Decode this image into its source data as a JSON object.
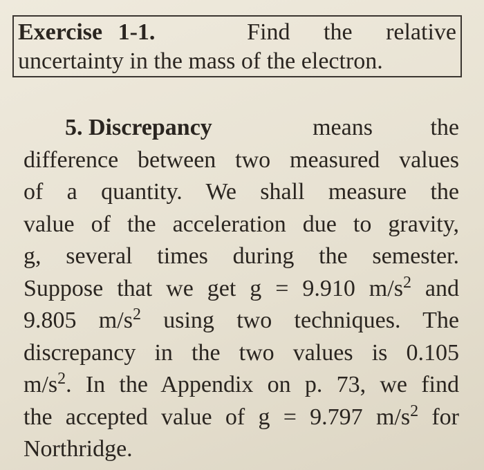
{
  "exercise": {
    "label": "Exercise 1-1.",
    "lines": [
      "Find the relative",
      "uncertainty in the mass of the electron."
    ]
  },
  "paragraph": {
    "number": "5.",
    "term": "Discrepancy",
    "lines": [
      [
        "means the"
      ],
      [
        "difference between two measured values"
      ],
      [
        "of a quantity. We shall measure the"
      ],
      [
        "value of the acceleration due to gravity,"
      ],
      [
        "g, several times during the semester."
      ],
      [
        "Suppose that we get g = 9.910 m/s",
        "2",
        " and"
      ],
      [
        "9.805 m/s",
        "2",
        " using two techniques. The"
      ],
      [
        "discrepancy in the two values is 0.105"
      ],
      [
        "m/s",
        "2",
        ". In the Appendix on p. 73, we find"
      ],
      [
        "the accepted value of g = 9.797 m/s",
        "2",
        " for"
      ],
      [
        "Northridge."
      ]
    ]
  }
}
